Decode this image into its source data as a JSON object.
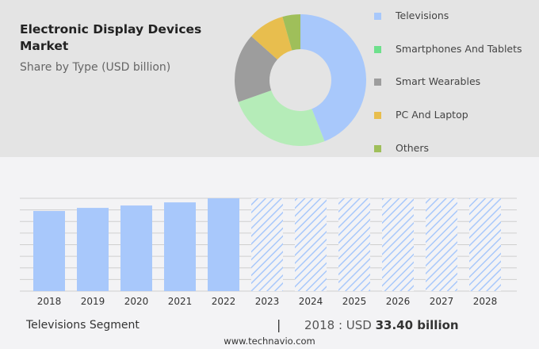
{
  "title": "Electronic Display Devices Market",
  "subtitle": "Share by Type (USD billion)",
  "chart_data": [
    {
      "type": "pie",
      "variant": "donut",
      "categories": [
        "Televisions",
        "Smartphones And Tablets",
        "Smart Wearables",
        "PC And Laptop",
        "Others"
      ],
      "values": [
        44,
        25.6,
        17,
        9,
        4.4
      ],
      "colors": [
        "#a8c8fb",
        "#b5ecb8",
        "#9d9d9d",
        "#e8be4e",
        "#9fbf5a"
      ],
      "legend_colors": [
        "#a8c8fb",
        "#6ee08c",
        "#9d9d9d",
        "#e8be4e",
        "#9fbf5a"
      ],
      "legend": "right"
    },
    {
      "type": "bar",
      "categories": [
        "2018",
        "2019",
        "2020",
        "2021",
        "2022",
        "2023",
        "2024",
        "2025",
        "2026",
        "2027",
        "2028"
      ],
      "values": [
        33.4,
        34.7,
        35.7,
        37.0,
        38.7,
        null,
        null,
        null,
        null,
        null,
        null
      ],
      "forecast": [
        "2023",
        "2024",
        "2025",
        "2026",
        "2027",
        "2028"
      ],
      "forecast_style": "hatched",
      "color": "#a8c8fb",
      "grid": true,
      "ylim": [
        0,
        38.7
      ]
    }
  ],
  "footer": {
    "segment": "Televisions Segment",
    "separator": "|",
    "year_label": "2018 : USD",
    "value": "33.40 billion",
    "site": "www.technavio.com"
  }
}
